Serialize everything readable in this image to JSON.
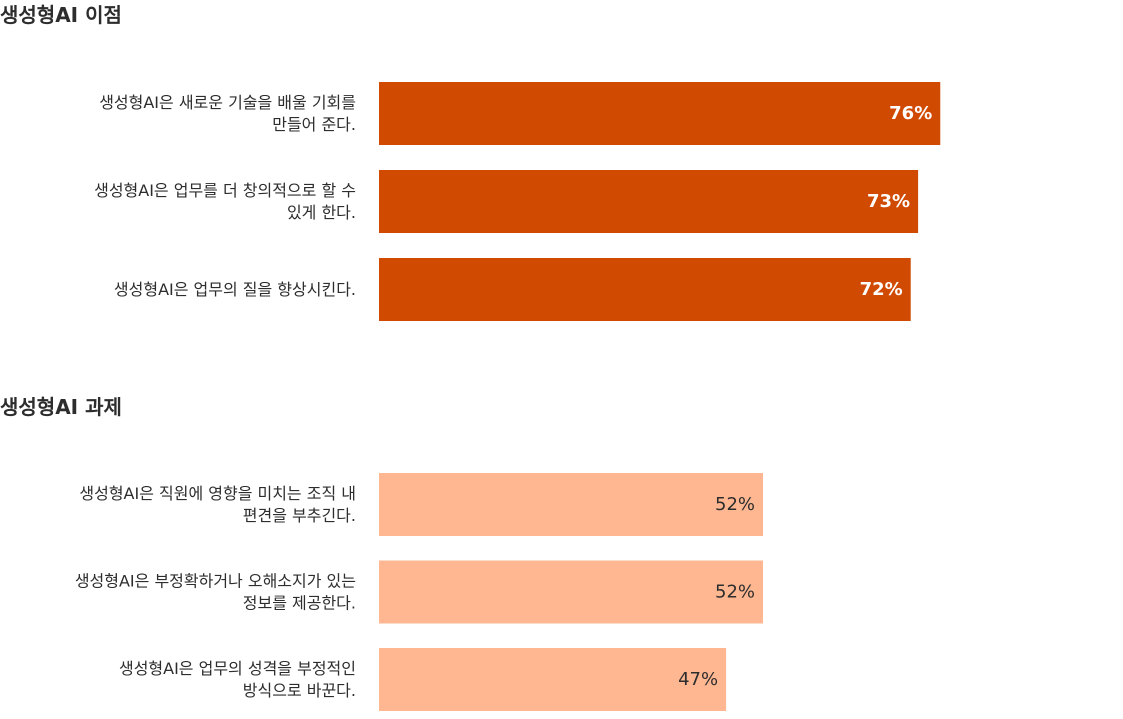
{
  "chart_data": [
    {
      "type": "bar",
      "orientation": "horizontal",
      "title": "생성형AI 이점",
      "categories": [
        [
          "생성형AI은 새로운 기술을 배울 기회를",
          "만들어 준다."
        ],
        [
          "생성형AI은 업무를 더 창의적으로 할 수",
          "있게 한다."
        ],
        [
          "생성형AI은 업무의 질을 향상시킨다."
        ]
      ],
      "values": [
        76,
        73,
        72
      ],
      "data_labels": [
        "76%",
        "73%",
        "72%"
      ],
      "xlim": [
        0,
        100
      ],
      "grid": false,
      "color": "#d04a02",
      "label_color": "#ffffff"
    },
    {
      "type": "bar",
      "orientation": "horizontal",
      "title": "생성형AI 과제",
      "categories": [
        [
          "생성형AI은 직원에 영향을 미치는 조직 내",
          "편견을 부추긴다."
        ],
        [
          "생성형AI은 부정확하거나 오해소지가 있는",
          "정보를 제공한다."
        ],
        [
          "생성형AI은 업무의 성격을 부정적인",
          "방식으로 바꾼다."
        ]
      ],
      "values": [
        52,
        52,
        47
      ],
      "data_labels": [
        "52%",
        "52%",
        "47%"
      ],
      "xlim": [
        0,
        100
      ],
      "grid": false,
      "color": "#feb791",
      "label_color": "#2d2d2d"
    }
  ]
}
